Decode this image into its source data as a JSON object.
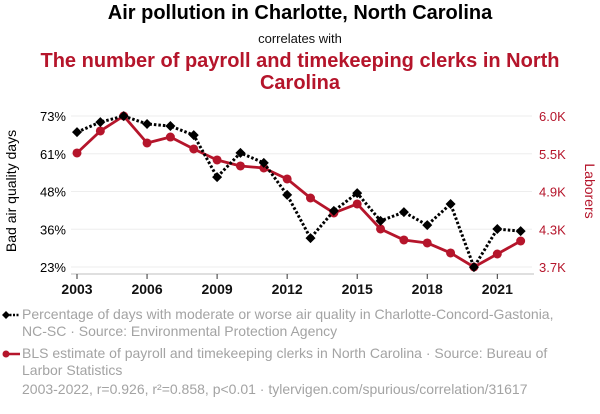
{
  "header": {
    "title": "Air pollution in Charlotte, North Carolina",
    "connector": "correlates with",
    "subtitle": "The number of payroll and timekeeping clerks in North Carolina"
  },
  "legend": {
    "items": [
      {
        "label": "Percentage of days with moderate or worse air quality in Charlotte-Concord-Gastonia, NC-SC · Source: Environmental Protection Agency",
        "color": "#000000",
        "marker": "diamond",
        "style": "dotted"
      },
      {
        "label": "BLS estimate of payroll and timekeeping clerks in North Carolina · Source: Bureau of Larbor Statistics",
        "color": "#b5152b",
        "marker": "circle",
        "style": "solid"
      }
    ]
  },
  "footer": {
    "text": "2003-2022, r=0.926, r²=0.858, p<0.01 · tylervigen.com/spurious/correlation/31617"
  },
  "chart_data": {
    "type": "line",
    "title": "Air pollution in Charlotte, North Carolina correlates with The number of payroll and timekeeping clerks in North Carolina",
    "x": [
      2003,
      2004,
      2005,
      2006,
      2007,
      2008,
      2009,
      2010,
      2011,
      2012,
      2013,
      2014,
      2015,
      2016,
      2017,
      2018,
      2019,
      2020,
      2021,
      2022
    ],
    "xlabel": "",
    "x_ticks": [
      "2003",
      "2006",
      "2009",
      "2012",
      "2015",
      "2018",
      "2021"
    ],
    "x_tick_values": [
      2003,
      2006,
      2009,
      2012,
      2015,
      2018,
      2021
    ],
    "xlim": [
      2002.7,
      2022.5
    ],
    "grid": true,
    "legend_position": "bottom",
    "series": [
      {
        "name": "Percentage of days with moderate or worse air quality in Charlotte-Concord-Gastonia, NC-SC",
        "axis": "left",
        "color": "#000000",
        "values": [
          68.0,
          71.3,
          73.3,
          70.7,
          70.0,
          67.0,
          53.1,
          61.1,
          57.8,
          47.2,
          32.9,
          41.9,
          47.8,
          38.6,
          41.5,
          37.2,
          44.2,
          23.3,
          35.9,
          35.2
        ]
      },
      {
        "name": "BLS estimate of payroll and timekeeping clerks in North Carolina",
        "axis": "right",
        "color": "#b5152b",
        "values": [
          5452,
          5787,
          6015,
          5604,
          5695,
          5513,
          5345,
          5254,
          5223,
          5056,
          4766,
          4538,
          4675,
          4294,
          4127,
          4081,
          3929,
          3715,
          3913,
          4111
        ]
      }
    ],
    "y_left": {
      "label": "Bad air quality days",
      "ticks": [
        "73%",
        "61%",
        "48%",
        "36%",
        "23%"
      ],
      "tick_values": [
        73.33,
        60.83,
        48.33,
        35.83,
        23.33
      ],
      "ylim": [
        23.33,
        73.33
      ]
    },
    "y_right": {
      "label": "Laborers",
      "ticks": [
        "6.0K",
        "5.5K",
        "4.9K",
        "4.3K",
        "3.7K"
      ],
      "tick_values": [
        6015,
        5440,
        4865,
        4290,
        3715
      ],
      "ylim": [
        3715,
        6015
      ],
      "color": "#b5152b"
    }
  }
}
